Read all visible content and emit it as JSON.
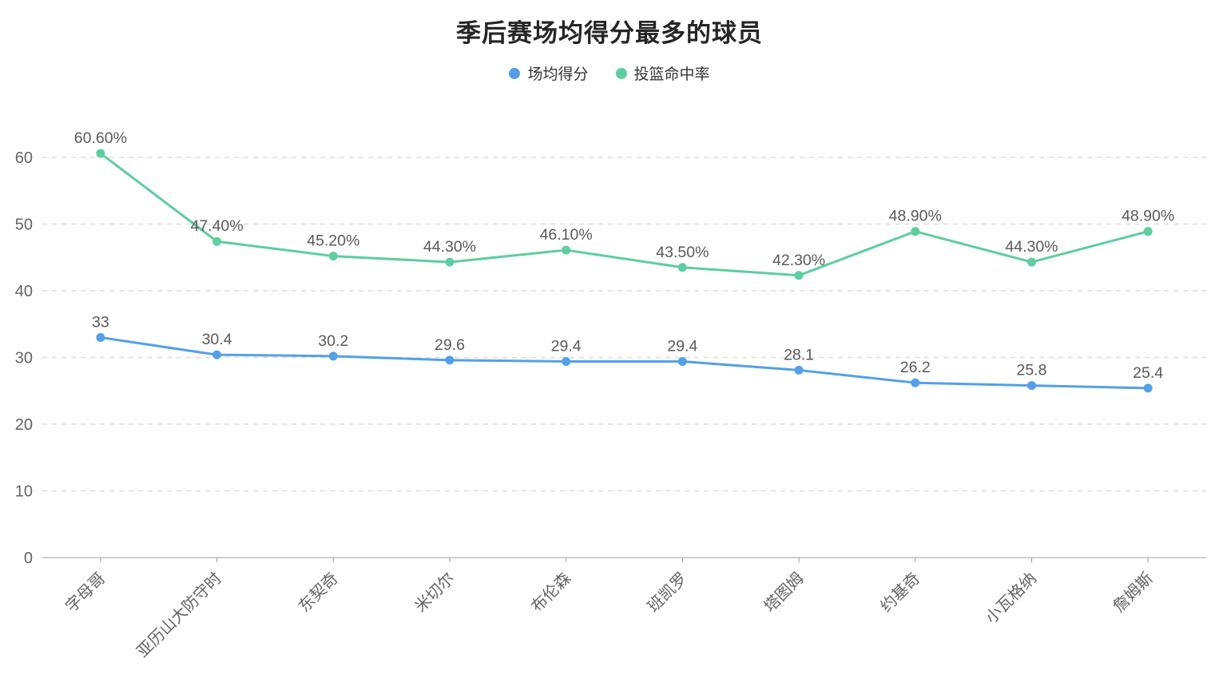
{
  "chart_data": {
    "type": "line",
    "title": "季后赛场均得分最多的球员",
    "legend_position": "top-center",
    "grid": "horizontal-dashed",
    "x_label_rotation": 45,
    "categories": [
      "字母哥",
      "亚历山大防守时",
      "东契奇",
      "米切尔",
      "布伦森",
      "班凯罗",
      "塔图姆",
      "约基奇",
      "小瓦格纳",
      "詹姆斯"
    ],
    "series": [
      {
        "name": "场均得分",
        "color": "#54a0e8",
        "values": [
          33,
          30.4,
          30.2,
          29.6,
          29.4,
          29.4,
          28.1,
          26.2,
          25.8,
          25.4
        ],
        "labels": [
          "33",
          "30.4",
          "30.2",
          "29.6",
          "29.4",
          "29.4",
          "28.1",
          "26.2",
          "25.8",
          "25.4"
        ]
      },
      {
        "name": "投篮命中率",
        "color": "#5ecda0",
        "values": [
          60.6,
          47.4,
          45.2,
          44.3,
          46.1,
          43.5,
          42.3,
          48.9,
          44.3,
          48.9
        ],
        "labels": [
          "60.60%",
          "47.40%",
          "45.20%",
          "44.30%",
          "46.10%",
          "43.50%",
          "42.30%",
          "48.90%",
          "44.30%",
          "48.90%"
        ]
      }
    ],
    "yticks": [
      0,
      10,
      20,
      30,
      40,
      50,
      60
    ],
    "ylim": [
      0,
      68
    ],
    "xlabel": "",
    "ylabel": ""
  },
  "style": {
    "axis_line_color": "#c0c0c0",
    "tick_color": "#999999",
    "gridline_color": "#dcdcdc",
    "axis_text_color": "#646464",
    "data_label_color": "#5a5a5a",
    "title_color": "#262626",
    "background": "#ffffff"
  }
}
